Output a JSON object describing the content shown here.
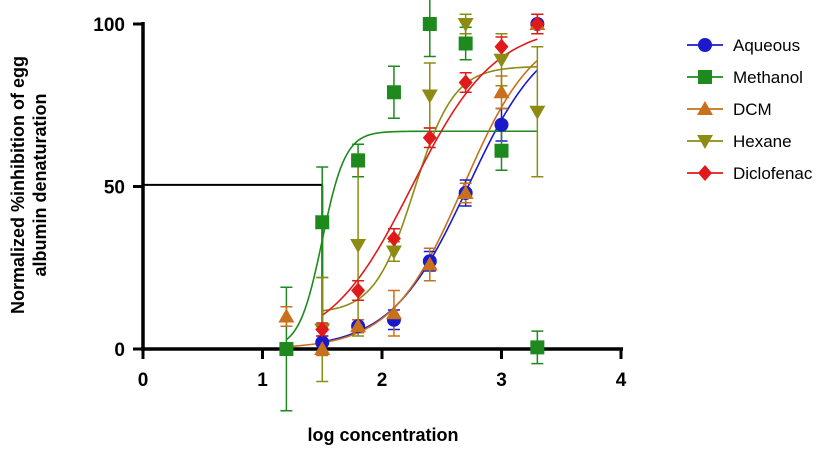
{
  "chart_data": {
    "type": "scatter",
    "title": "",
    "xlabel": "log concentration",
    "ylabel_lines": [
      "Normalized %inhibition of egg",
      "albumin denaturation"
    ],
    "xlim": [
      0,
      4
    ],
    "ylim": [
      0,
      100
    ],
    "xticks": [
      0,
      1,
      2,
      3,
      4
    ],
    "yticks": [
      0,
      50,
      100
    ],
    "x_tick_labels": [
      "0",
      "1",
      "2",
      "3",
      "4"
    ],
    "y_tick_labels": [
      "0",
      "50",
      "100"
    ],
    "grid": false,
    "legend_position": "right",
    "reference_line": {
      "y": 50.5,
      "x": 1.5
    },
    "series": [
      {
        "name": "Aqueous",
        "color": "#1a1acc",
        "marker": "circle",
        "points": [
          {
            "x": 1.5,
            "y": 2,
            "err": 2
          },
          {
            "x": 1.8,
            "y": 7,
            "err": 2
          },
          {
            "x": 2.1,
            "y": 9,
            "err": 3
          },
          {
            "x": 2.4,
            "y": 27,
            "err": 3
          },
          {
            "x": 2.7,
            "y": 48,
            "err": 4
          },
          {
            "x": 3.0,
            "y": 69,
            "err": 5
          },
          {
            "x": 3.3,
            "y": 100,
            "err": 3
          }
        ],
        "curve": {
          "bottom": 0,
          "top": 100,
          "logEC50": 2.72,
          "hill": 1.35
        }
      },
      {
        "name": "Methanol",
        "color": "#1e8a1e",
        "marker": "square",
        "points": [
          {
            "x": 1.2,
            "y": 0,
            "err": 19
          },
          {
            "x": 1.5,
            "y": 39,
            "err": 17
          },
          {
            "x": 1.8,
            "y": 58,
            "err": 5
          },
          {
            "x": 2.1,
            "y": 79,
            "err": 8
          },
          {
            "x": 2.4,
            "y": 100,
            "err": 10
          },
          {
            "x": 2.7,
            "y": 94,
            "err": 5
          },
          {
            "x": 3.0,
            "y": 61,
            "err": 6
          },
          {
            "x": 3.3,
            "y": 0.5,
            "err": 5
          }
        ],
        "curve": {
          "bottom": 0,
          "top": 67,
          "logEC50": 1.5,
          "hill": 4.5
        }
      },
      {
        "name": "DCM",
        "color": "#c8701c",
        "marker": "triangle-up",
        "points": [
          {
            "x": 1.2,
            "y": 10,
            "err": 3
          },
          {
            "x": 1.5,
            "y": 0,
            "err": 2
          },
          {
            "x": 1.8,
            "y": 7,
            "err": 2
          },
          {
            "x": 2.1,
            "y": 11,
            "err": 7
          },
          {
            "x": 2.4,
            "y": 26,
            "err": 5
          },
          {
            "x": 2.7,
            "y": 48,
            "err": 3
          },
          {
            "x": 3.0,
            "y": 79,
            "err": 5
          },
          {
            "x": 3.3,
            "y": 100,
            "err": 3
          }
        ],
        "curve": {
          "bottom": 0,
          "top": 100,
          "logEC50": 2.68,
          "hill": 1.45
        }
      },
      {
        "name": "Hexane",
        "color": "#8c8c14",
        "marker": "triangle-down",
        "points": [
          {
            "x": 1.5,
            "y": 6,
            "err": 16
          },
          {
            "x": 1.8,
            "y": 32,
            "err": 28
          },
          {
            "x": 2.1,
            "y": 30,
            "err": 3
          },
          {
            "x": 2.4,
            "y": 78,
            "err": 10
          },
          {
            "x": 2.7,
            "y": 100,
            "err": 3
          },
          {
            "x": 3.0,
            "y": 89,
            "err": 8
          },
          {
            "x": 3.3,
            "y": 73,
            "err": 20
          }
        ],
        "curve": {
          "bottom": 11,
          "top": 87,
          "logEC50": 2.27,
          "hill": 2.6
        }
      },
      {
        "name": "Diclofenac",
        "color": "#e01a1a",
        "marker": "diamond",
        "points": [
          {
            "x": 1.5,
            "y": 6,
            "err": 2
          },
          {
            "x": 1.8,
            "y": 18,
            "err": 3
          },
          {
            "x": 2.1,
            "y": 34,
            "err": 3
          },
          {
            "x": 2.4,
            "y": 65,
            "err": 3
          },
          {
            "x": 2.7,
            "y": 82,
            "err": 3
          },
          {
            "x": 3.0,
            "y": 93,
            "err": 3
          },
          {
            "x": 3.3,
            "y": 100,
            "err": 3
          }
        ],
        "curve": {
          "bottom": 0,
          "top": 100,
          "logEC50": 2.25,
          "hill": 1.25
        }
      }
    ]
  }
}
